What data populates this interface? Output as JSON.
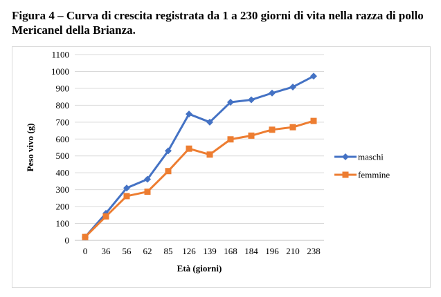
{
  "figure": {
    "caption": "Figura 4 – Curva di crescita registrata da 1 a 230 giorni di vita nella razza di pollo Mericanel della Brianza."
  },
  "chart_data": {
    "type": "line",
    "title": "",
    "xlabel": "Età (giorni)",
    "ylabel": "Peso vivo (g)",
    "categories": [
      "0",
      "36",
      "56",
      "62",
      "85",
      "126",
      "139",
      "168",
      "184",
      "196",
      "210",
      "238"
    ],
    "ylim": [
      0,
      1100
    ],
    "ytick_step": 100,
    "grid": true,
    "legend_position": "right",
    "series": [
      {
        "name": "maschi",
        "color": "#4472c4",
        "marker": "diamond",
        "values": [
          20,
          160,
          310,
          362,
          530,
          748,
          700,
          818,
          832,
          872,
          908,
          972
        ]
      },
      {
        "name": "femmine",
        "color": "#ed7d31",
        "marker": "square",
        "values": [
          20,
          142,
          262,
          288,
          410,
          543,
          508,
          598,
          620,
          655,
          670,
          707
        ]
      }
    ]
  }
}
